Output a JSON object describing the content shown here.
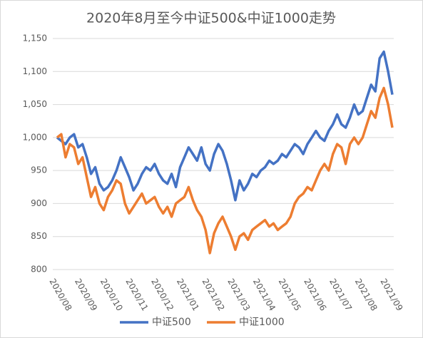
{
  "chart_data": {
    "type": "line",
    "title": "2020年8月至今中证500&中证1000走势",
    "categories": [
      "2020/08",
      null,
      null,
      null,
      null,
      null,
      "2020/09",
      null,
      null,
      null,
      null,
      null,
      "2020/10",
      null,
      null,
      null,
      null,
      null,
      "2020/11",
      null,
      null,
      null,
      null,
      null,
      "2020/12",
      null,
      null,
      null,
      null,
      null,
      "2021/01",
      null,
      null,
      null,
      null,
      null,
      "2021/02",
      null,
      null,
      null,
      null,
      null,
      "2021/03",
      null,
      null,
      null,
      null,
      null,
      "2021/04",
      null,
      null,
      null,
      null,
      null,
      "2021/05",
      null,
      null,
      null,
      null,
      null,
      "2021/06",
      null,
      null,
      null,
      null,
      null,
      "2021/07",
      null,
      null,
      null,
      null,
      null,
      "2021/08",
      null,
      null,
      null,
      null,
      null,
      "2021/09",
      null
    ],
    "series": [
      {
        "name": "中证500",
        "color": "#4472c4",
        "values": [
          1000,
          995,
          990,
          1000,
          1005,
          985,
          990,
          970,
          945,
          955,
          930,
          920,
          925,
          935,
          950,
          970,
          955,
          940,
          920,
          930,
          945,
          955,
          950,
          960,
          945,
          935,
          930,
          945,
          925,
          955,
          970,
          985,
          975,
          965,
          985,
          960,
          950,
          975,
          990,
          980,
          960,
          935,
          905,
          935,
          920,
          930,
          945,
          940,
          950,
          955,
          965,
          960,
          965,
          975,
          970,
          980,
          990,
          985,
          975,
          990,
          1000,
          1010,
          1000,
          995,
          1010,
          1020,
          1035,
          1020,
          1015,
          1030,
          1050,
          1035,
          1040,
          1060,
          1080,
          1070,
          1120,
          1130,
          1100,
          1065
        ]
      },
      {
        "name": "中证1000",
        "color": "#ed7d31",
        "values": [
          1000,
          1005,
          970,
          990,
          985,
          960,
          970,
          940,
          910,
          925,
          900,
          890,
          910,
          920,
          935,
          930,
          900,
          885,
          895,
          905,
          915,
          900,
          905,
          910,
          895,
          885,
          895,
          880,
          900,
          905,
          910,
          925,
          905,
          890,
          880,
          860,
          825,
          855,
          870,
          880,
          865,
          850,
          830,
          850,
          855,
          845,
          860,
          865,
          870,
          875,
          865,
          870,
          860,
          865,
          870,
          880,
          900,
          910,
          915,
          925,
          920,
          935,
          950,
          960,
          950,
          975,
          990,
          985,
          960,
          990,
          1000,
          990,
          1000,
          1020,
          1040,
          1030,
          1060,
          1075,
          1050,
          1015
        ]
      }
    ],
    "ylim": [
      800,
      1150
    ],
    "yticks": [
      800,
      850,
      900,
      950,
      {
        "value": 1000,
        "label": "1,000"
      },
      {
        "value": 1050,
        "label": "1,050"
      },
      {
        "value": 1100,
        "label": "1,100"
      },
      {
        "value": 1150,
        "label": "1,150"
      }
    ],
    "grid": true,
    "legend": "bottom"
  }
}
